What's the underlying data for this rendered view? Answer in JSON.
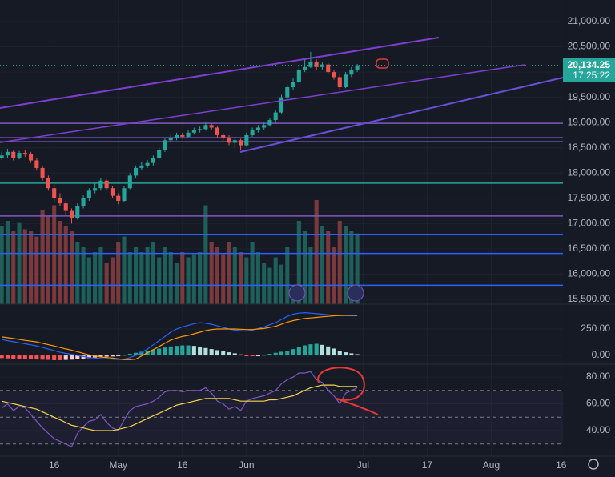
{
  "chart_data": [
    {
      "type": "candlestick",
      "open": [
        18300,
        18350,
        18420,
        18300,
        18400,
        18380,
        18250,
        18100,
        17900,
        17700,
        17500,
        17400,
        17250,
        17100,
        17350,
        17500,
        17650,
        17700,
        17850,
        17700,
        17550,
        17450,
        17700,
        17950,
        18100,
        18150,
        18200,
        18300,
        18450,
        18650,
        18700,
        18750,
        18720,
        18800,
        18850,
        18870,
        18950,
        18900,
        18750,
        18700,
        18600,
        18650,
        18550,
        18750,
        18850,
        18900,
        18950,
        19050,
        19200,
        19500,
        19700,
        19800,
        20050,
        20100,
        20200,
        20100,
        20150,
        20000,
        19900,
        19700,
        19950,
        20050
      ],
      "high": [
        18420,
        18480,
        18450,
        18440,
        18460,
        18420,
        18300,
        18150,
        17950,
        17780,
        17600,
        17450,
        17300,
        17400,
        17560,
        17700,
        17800,
        17900,
        17880,
        17750,
        17600,
        17750,
        18000,
        18150,
        18220,
        18260,
        18350,
        18500,
        18700,
        18760,
        18800,
        18800,
        18850,
        18900,
        18920,
        19000,
        18990,
        18940,
        18800,
        18750,
        18700,
        18680,
        18800,
        18900,
        18950,
        19000,
        19100,
        19250,
        19550,
        19750,
        19880,
        20100,
        20250,
        20400,
        20250,
        20200,
        20180,
        20050,
        19950,
        20000,
        20100,
        20160
      ],
      "low": [
        18260,
        18300,
        18250,
        18270,
        18320,
        18200,
        18050,
        17850,
        17650,
        17420,
        17350,
        17150,
        17000,
        17080,
        17300,
        17450,
        17600,
        17650,
        17650,
        17500,
        17380,
        17420,
        17680,
        17900,
        18050,
        18100,
        18150,
        18280,
        18420,
        18600,
        18650,
        18680,
        18700,
        18760,
        18800,
        18840,
        18850,
        18700,
        18650,
        18550,
        18500,
        18450,
        18520,
        18720,
        18800,
        18860,
        18920,
        19000,
        19180,
        19450,
        19650,
        19780,
        20000,
        20080,
        20050,
        20050,
        19950,
        19850,
        19650,
        19680,
        19900,
        20000
      ],
      "close": [
        18350,
        18420,
        18300,
        18400,
        18380,
        18250,
        18100,
        17900,
        17700,
        17500,
        17400,
        17250,
        17100,
        17350,
        17500,
        17650,
        17700,
        17850,
        17700,
        17550,
        17450,
        17700,
        17950,
        18100,
        18150,
        18200,
        18300,
        18450,
        18650,
        18700,
        18750,
        18720,
        18800,
        18850,
        18870,
        18950,
        18900,
        18750,
        18700,
        18600,
        18650,
        18550,
        18750,
        18850,
        18900,
        18950,
        19050,
        19200,
        19500,
        19700,
        19800,
        20050,
        20100,
        20200,
        20100,
        20150,
        20000,
        19900,
        19700,
        19950,
        20050,
        20134.25
      ],
      "volume": [
        75,
        80,
        70,
        78,
        72,
        70,
        65,
        90,
        85,
        95,
        80,
        75,
        70,
        60,
        55,
        45,
        50,
        55,
        40,
        45,
        60,
        65,
        50,
        55,
        50,
        55,
        60,
        45,
        55,
        50,
        40,
        50,
        45,
        48,
        50,
        95,
        60,
        55,
        48,
        60,
        55,
        50,
        45,
        60,
        50,
        40,
        35,
        45,
        38,
        55,
        15,
        80,
        70,
        55,
        100,
        75,
        70,
        55,
        80,
        75,
        70,
        68
      ],
      "up_color": "#26a69a",
      "down_color": "#ef5350",
      "xlim": [
        -0.3,
        96.3
      ],
      "xticks": [
        {
          "value": 9,
          "label": "16"
        },
        {
          "value": 20,
          "label": "May"
        },
        {
          "value": 31,
          "label": "16"
        },
        {
          "value": 42,
          "label": "Jun"
        },
        {
          "value": 62,
          "label": "Jul"
        },
        {
          "value": 73,
          "label": "17"
        },
        {
          "value": 84,
          "label": "Aug"
        },
        {
          "value": 96,
          "label": "16"
        }
      ],
      "ylim": [
        15405,
        21428
      ],
      "yticks": [
        {
          "value": 15500,
          "label": "15,500.00"
        },
        {
          "value": 16000,
          "label": "16,000.00"
        },
        {
          "value": 16500,
          "label": "16,500.00"
        },
        {
          "value": 17000,
          "label": "17,000.00"
        },
        {
          "value": 17500,
          "label": "17,500.00"
        },
        {
          "value": 18000,
          "label": "18,000.00"
        },
        {
          "value": 18500,
          "label": "18,500.00"
        },
        {
          "value": 19000,
          "label": "19,000.00"
        },
        {
          "value": 19500,
          "label": "19,500.00"
        },
        {
          "value": 20000,
          "label": "20,000.00"
        },
        {
          "value": 20500,
          "label": "20,500.00"
        },
        {
          "value": 21000,
          "label": "21,000.00"
        }
      ],
      "hlines": [
        {
          "value": 18985,
          "color": "#7e57c2"
        },
        {
          "value": 18700,
          "color": "#7e57c2"
        },
        {
          "value": 18620,
          "color": "#7e57c2"
        },
        {
          "value": 17800,
          "color": "#26a69a"
        },
        {
          "value": 17150,
          "color": "#7e57c2"
        },
        {
          "value": 16780,
          "color": "#2962ff"
        },
        {
          "value": 16410,
          "color": "#2962ff"
        },
        {
          "value": 15780,
          "color": "#2962ff"
        }
      ],
      "last_price": {
        "value": 20134.25,
        "label": "20,134.25"
      },
      "countdown": "17:25:22"
    },
    {
      "type": "macd",
      "values": [
        -25,
        -28,
        -30,
        -32,
        -33,
        -35,
        -38,
        -40,
        -42,
        -45,
        -45,
        -42,
        -40,
        -35,
        -30,
        -25,
        -20,
        -15,
        -12,
        -10,
        -5,
        5,
        15,
        25,
        35,
        45,
        55,
        65,
        75,
        85,
        90,
        95,
        95,
        90,
        80,
        70,
        60,
        50,
        40,
        30,
        20,
        10,
        -5,
        -8,
        -5,
        5,
        15,
        25,
        35,
        45,
        60,
        80,
        95,
        105,
        110,
        100,
        85,
        65,
        45,
        30,
        20,
        12
      ],
      "series": [
        {
          "color": "#2962ff",
          "values": [
            150,
            140,
            130,
            120,
            110,
            100,
            90,
            75,
            60,
            45,
            30,
            20,
            10,
            0,
            -10,
            -20,
            -25,
            -30,
            -32,
            -35,
            -38,
            -35,
            -20,
            0,
            30,
            60,
            100,
            140,
            180,
            220,
            250,
            270,
            285,
            300,
            310,
            305,
            295,
            280,
            265,
            250,
            240,
            235,
            230,
            240,
            255,
            270,
            290,
            310,
            340,
            370,
            390,
            400,
            405,
            400,
            395,
            390,
            385,
            380,
            378,
            377,
            376,
            375
          ]
        },
        {
          "color": "#ff9800",
          "values": [
            175,
            168,
            160,
            152,
            143,
            135,
            128,
            115,
            102,
            90,
            75,
            62,
            50,
            35,
            20,
            5,
            -5,
            -15,
            -20,
            -25,
            -33,
            -40,
            -40,
            -35,
            -5,
            25,
            55,
            85,
            115,
            145,
            165,
            180,
            190,
            205,
            220,
            235,
            245,
            250,
            250,
            250,
            250,
            248,
            245,
            245,
            250,
            255,
            265,
            275,
            295,
            315,
            330,
            340,
            350,
            355,
            360,
            365,
            370,
            375,
            378,
            380,
            380,
            380
          ]
        }
      ],
      "ylim": [
        -83,
        485
      ],
      "yticks": [
        {
          "value": 0,
          "label": "0.00"
        },
        {
          "value": 250,
          "label": "250.00"
        }
      ]
    },
    {
      "type": "line",
      "series": [
        {
          "color": "#7e57c2",
          "values": [
            57,
            60,
            55,
            58,
            57,
            52,
            47,
            42,
            38,
            34,
            32,
            30,
            28,
            38,
            43,
            47,
            48,
            52,
            46,
            42,
            40,
            48,
            55,
            58,
            59,
            60,
            62,
            65,
            69,
            70,
            70,
            69,
            70,
            70,
            70,
            72,
            68,
            62,
            60,
            56,
            58,
            55,
            62,
            64,
            65,
            66,
            68,
            70,
            75,
            78,
            80,
            83,
            83,
            84,
            78,
            76,
            70,
            66,
            60,
            68,
            70,
            72
          ]
        },
        {
          "color": "#f5d547",
          "values": [
            62,
            61,
            60,
            59,
            58,
            57,
            56,
            54,
            52,
            50,
            48,
            46,
            44,
            43,
            42,
            41,
            40,
            40,
            40,
            40,
            41,
            42,
            43,
            45,
            47,
            49,
            51,
            53,
            55,
            57,
            59,
            60,
            61,
            62,
            63,
            64,
            64,
            64,
            64,
            64,
            63,
            62,
            62,
            62,
            62,
            62,
            63,
            63,
            64,
            65,
            66,
            68,
            70,
            72,
            73,
            74,
            74,
            74,
            73,
            73,
            73,
            73
          ]
        }
      ],
      "ylim": [
        20.9,
        89.6
      ],
      "yticks": [
        {
          "value": 40,
          "label": "40.00"
        },
        {
          "value": 60,
          "label": "60.00"
        },
        {
          "value": 80,
          "label": "80.00"
        }
      ],
      "bands": [
        30,
        50,
        70
      ]
    }
  ]
}
